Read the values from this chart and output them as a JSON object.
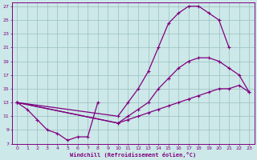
{
  "xlabel": "Windchill (Refroidissement éolien,°C)",
  "bg_color": "#cce8e8",
  "grid_color": "#9bbfbf",
  "line_color": "#800080",
  "xlim": [
    -0.5,
    23.5
  ],
  "ylim": [
    7,
    27.5
  ],
  "xticks": [
    0,
    1,
    2,
    3,
    4,
    5,
    6,
    7,
    8,
    9,
    10,
    11,
    12,
    13,
    14,
    15,
    16,
    17,
    18,
    19,
    20,
    21,
    22,
    23
  ],
  "yticks": [
    7,
    9,
    11,
    13,
    15,
    17,
    19,
    21,
    23,
    25,
    27
  ],
  "curve_zigzag_x": [
    0,
    1,
    2,
    3,
    4,
    5,
    6,
    7,
    8
  ],
  "curve_zigzag_y": [
    13,
    12,
    10.5,
    9,
    8.5,
    7.5,
    8,
    8,
    13
  ],
  "curve_top_x": [
    0,
    10,
    11,
    12,
    13,
    14,
    15,
    16,
    17,
    18,
    19,
    20,
    21
  ],
  "curve_top_y": [
    13,
    11,
    13,
    15,
    17.5,
    21,
    24.5,
    26,
    27,
    27,
    26,
    25,
    21
  ],
  "curve_mid_x": [
    0,
    10,
    11,
    12,
    13,
    14,
    15,
    16,
    17,
    18,
    19,
    20,
    21,
    22,
    23
  ],
  "curve_mid_y": [
    13,
    10,
    11,
    12,
    13,
    15,
    16.5,
    18,
    19,
    19.5,
    19.5,
    19,
    18,
    17,
    14.5
  ],
  "curve_bot_x": [
    0,
    10,
    11,
    12,
    13,
    14,
    15,
    16,
    17,
    18,
    19,
    20,
    21,
    22,
    23
  ],
  "curve_bot_y": [
    13,
    10,
    10.5,
    11,
    11.5,
    12,
    12.5,
    13,
    13.5,
    14,
    14.5,
    15,
    15,
    15.5,
    14.5
  ]
}
